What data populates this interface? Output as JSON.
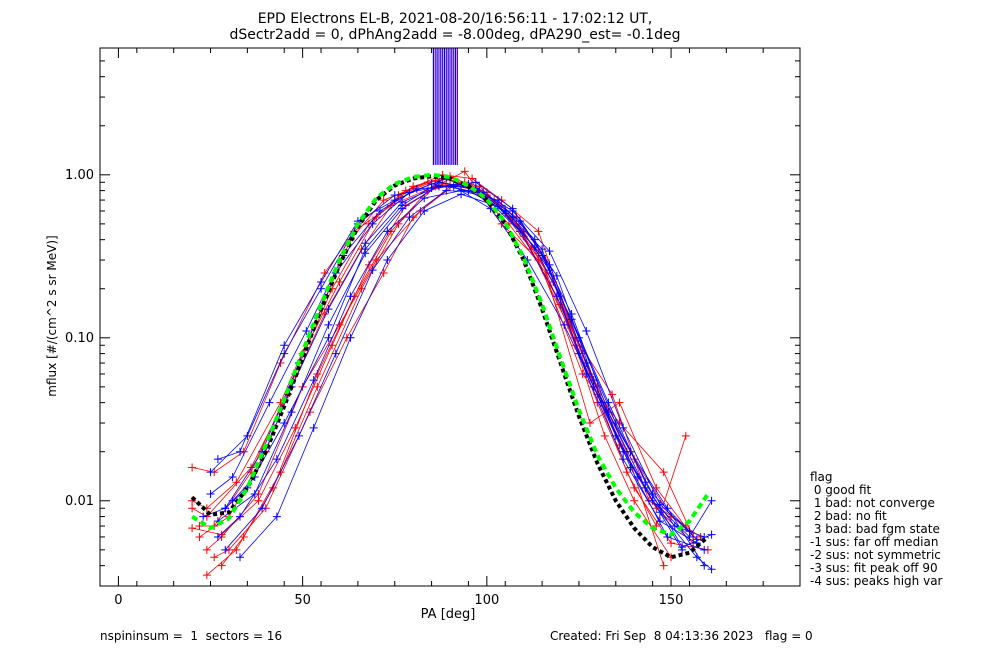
{
  "chart_data": {
    "type": "line",
    "title_line1": "EPD Electrons EL-B, 2021-08-20/16:56:11 - 17:02:12 UT,",
    "title_line2": "dSectr2add = 0, dPhAng2add = -8.00deg, dPA290_est=  -0.1deg",
    "xlabel": "PA [deg]",
    "ylabel": "mflux [#/(cm^2 s sr MeV)]",
    "xlim": [
      -5,
      185
    ],
    "ylim": [
      0.003,
      6.0
    ],
    "y_scale": "log",
    "x_ticks": [
      {
        "v": 0,
        "label": "0"
      },
      {
        "v": 50,
        "label": "50"
      },
      {
        "v": 100,
        "label": "100"
      },
      {
        "v": 150,
        "label": "150"
      }
    ],
    "y_ticks": [
      {
        "v": 0.01,
        "label": "0.01"
      },
      {
        "v": 0.1,
        "label": "0.10"
      },
      {
        "v": 1.0,
        "label": "1.00"
      }
    ],
    "colors": {
      "red": "#ff0000",
      "blue": "#0000ff",
      "fit_black": "#000000",
      "fit_green": "#00ff00",
      "axis": "#000000"
    },
    "series": [
      {
        "color": "red",
        "pa": [
          20,
          24,
          32,
          44,
          55,
          63,
          72,
          84,
          90
        ],
        "flux": [
          0.01,
          0.009,
          0.013,
          0.04,
          0.15,
          0.4,
          0.7,
          0.9,
          0.95
        ]
      },
      {
        "color": "red",
        "pa": [
          22,
          26,
          36,
          48,
          58,
          68,
          78,
          88,
          96,
          104,
          114,
          124,
          134,
          144,
          154
        ],
        "flux": [
          0.007,
          0.007,
          0.015,
          0.06,
          0.2,
          0.5,
          0.8,
          1.0,
          0.95,
          0.7,
          0.45,
          0.1,
          0.045,
          0.01,
          0.007
        ]
      },
      {
        "color": "red",
        "pa": [
          20,
          26,
          34,
          44,
          56,
          64,
          74,
          86,
          94,
          104,
          114,
          126,
          136,
          148,
          156
        ],
        "flux": [
          0.016,
          0.015,
          0.02,
          0.07,
          0.25,
          0.45,
          0.65,
          0.85,
          1.05,
          0.5,
          0.3,
          0.06,
          0.03,
          0.015,
          0.006
        ]
      },
      {
        "color": "red",
        "pa": [
          24,
          28,
          38,
          50,
          60,
          70,
          82,
          92,
          102,
          112,
          122,
          130,
          140,
          150,
          160
        ],
        "flux": [
          0.005,
          0.006,
          0.011,
          0.05,
          0.12,
          0.3,
          0.6,
          0.9,
          0.7,
          0.35,
          0.12,
          0.04,
          0.012,
          0.0055,
          0.005
        ]
      },
      {
        "color": "red",
        "pa": [
          26,
          30,
          40,
          52,
          62,
          72,
          80,
          90,
          100,
          110,
          120,
          130,
          138,
          146,
          154
        ],
        "flux": [
          0.0045,
          0.005,
          0.009,
          0.035,
          0.1,
          0.25,
          0.55,
          0.85,
          0.75,
          0.45,
          0.18,
          0.045,
          0.015,
          0.007,
          0.025
        ]
      },
      {
        "color": "red",
        "pa": [
          20,
          24,
          36,
          46,
          56,
          66,
          76,
          86,
          96,
          106,
          116,
          128,
          136,
          146,
          156
        ],
        "flux": [
          0.009,
          0.008,
          0.016,
          0.045,
          0.14,
          0.35,
          0.75,
          0.92,
          0.82,
          0.5,
          0.25,
          0.03,
          0.04,
          0.012,
          0.006
        ]
      },
      {
        "color": "red",
        "pa": [
          28,
          34,
          42,
          54,
          64,
          74,
          84,
          94,
          104,
          114,
          124,
          132,
          140,
          150
        ],
        "flux": [
          0.004,
          0.006,
          0.012,
          0.06,
          0.18,
          0.45,
          0.8,
          0.9,
          0.65,
          0.33,
          0.09,
          0.025,
          0.01,
          0.0045
        ]
      },
      {
        "color": "red",
        "pa": [
          22,
          30,
          40,
          50,
          60,
          70,
          80,
          90,
          100,
          110,
          120,
          130,
          140,
          150,
          158
        ],
        "flux": [
          0.006,
          0.008,
          0.02,
          0.08,
          0.22,
          0.55,
          0.85,
          0.98,
          0.78,
          0.42,
          0.16,
          0.05,
          0.018,
          0.008,
          0.006
        ]
      },
      {
        "color": "red",
        "pa": [
          24,
          32,
          44,
          54,
          66,
          76,
          88,
          98,
          108,
          118,
          128,
          138,
          148
        ],
        "flux": [
          0.0035,
          0.005,
          0.015,
          0.05,
          0.2,
          0.5,
          0.95,
          0.85,
          0.5,
          0.22,
          0.06,
          0.02,
          0.004
        ]
      },
      {
        "color": "red",
        "pa": [
          20,
          28,
          38,
          48,
          58,
          68,
          78,
          88,
          98,
          108,
          116,
          126,
          136,
          146,
          156
        ],
        "flux": [
          0.0068,
          0.0062,
          0.01,
          0.028,
          0.09,
          0.28,
          0.65,
          0.88,
          0.8,
          0.55,
          0.3,
          0.08,
          0.022,
          0.009,
          0.0055
        ]
      },
      {
        "color": "blue",
        "pa": [
          27,
          33,
          45,
          55,
          65,
          75,
          85,
          95,
          105,
          115,
          125,
          135,
          145,
          155,
          161
        ],
        "flux": [
          0.018,
          0.02,
          0.09,
          0.22,
          0.52,
          0.7,
          0.88,
          0.8,
          0.6,
          0.35,
          0.08,
          0.025,
          0.01,
          0.006,
          0.01
        ]
      },
      {
        "color": "blue",
        "pa": [
          25,
          31,
          41,
          51,
          61,
          71,
          81,
          91,
          101,
          111,
          121,
          131,
          141,
          151,
          159
        ],
        "flux": [
          0.011,
          0.014,
          0.04,
          0.11,
          0.32,
          0.6,
          0.82,
          0.85,
          0.62,
          0.3,
          0.12,
          0.04,
          0.014,
          0.007,
          0.006
        ]
      },
      {
        "color": "blue",
        "pa": [
          29,
          35,
          45,
          57,
          67,
          77,
          87,
          97,
          107,
          117,
          127,
          137,
          147,
          157
        ],
        "flux": [
          0.009,
          0.012,
          0.03,
          0.1,
          0.35,
          0.65,
          0.9,
          0.82,
          0.55,
          0.26,
          0.06,
          0.018,
          0.0075,
          0.0055
        ]
      },
      {
        "color": "blue",
        "pa": [
          23,
          29,
          39,
          49,
          59,
          69,
          79,
          89,
          99,
          109,
          119,
          129,
          139,
          149,
          159
        ],
        "flux": [
          0.008,
          0.009,
          0.02,
          0.07,
          0.25,
          0.5,
          0.78,
          0.95,
          0.75,
          0.45,
          0.18,
          0.05,
          0.02,
          0.009,
          0.004
        ]
      },
      {
        "color": "blue",
        "pa": [
          27,
          33,
          43,
          53,
          63,
          73,
          83,
          93,
          103,
          113,
          123,
          133,
          143,
          153
        ],
        "flux": [
          0.006,
          0.008,
          0.018,
          0.055,
          0.18,
          0.45,
          0.72,
          0.8,
          0.7,
          0.4,
          0.14,
          0.035,
          0.012,
          0.005
        ]
      },
      {
        "color": "blue",
        "pa": [
          31,
          37,
          47,
          57,
          67,
          77,
          87,
          97,
          107,
          117,
          127,
          137,
          147,
          157,
          161
        ],
        "flux": [
          0.01,
          0.014,
          0.05,
          0.15,
          0.38,
          0.68,
          0.85,
          0.9,
          0.62,
          0.28,
          0.07,
          0.02,
          0.0085,
          0.0045,
          0.0038
        ]
      },
      {
        "color": "blue",
        "pa": [
          25,
          35,
          45,
          55,
          65,
          75,
          85,
          95,
          105,
          115,
          125,
          135,
          145,
          155
        ],
        "flux": [
          0.015,
          0.025,
          0.08,
          0.2,
          0.5,
          0.75,
          0.83,
          0.88,
          0.58,
          0.32,
          0.1,
          0.03,
          0.011,
          0.0065
        ]
      },
      {
        "color": "blue",
        "pa": [
          29,
          39,
          49,
          59,
          69,
          79,
          89,
          99,
          109,
          119,
          129,
          139,
          149,
          159
        ],
        "flux": [
          0.005,
          0.009,
          0.025,
          0.08,
          0.26,
          0.55,
          0.8,
          0.78,
          0.52,
          0.24,
          0.055,
          0.016,
          0.006,
          0.005
        ]
      },
      {
        "color": "blue",
        "pa": [
          27,
          37,
          47,
          57,
          67,
          77,
          87,
          97,
          107,
          117,
          127,
          137,
          147,
          157
        ],
        "flux": [
          0.0075,
          0.011,
          0.035,
          0.12,
          0.33,
          0.62,
          0.86,
          0.83,
          0.6,
          0.34,
          0.11,
          0.028,
          0.0095,
          0.0058
        ]
      },
      {
        "color": "blue",
        "pa": [
          33,
          43,
          53,
          63,
          73,
          83,
          93,
          103,
          113,
          123,
          133,
          143,
          153,
          161
        ],
        "flux": [
          0.0045,
          0.008,
          0.028,
          0.1,
          0.3,
          0.6,
          0.76,
          0.64,
          0.36,
          0.13,
          0.04,
          0.013,
          0.0052,
          0.0062
        ]
      }
    ],
    "fit_black": {
      "pa": [
        20,
        25,
        30,
        35,
        40,
        45,
        50,
        55,
        60,
        65,
        70,
        75,
        80,
        85,
        90,
        95,
        100,
        105,
        110,
        115,
        120,
        125,
        130,
        135,
        140,
        145,
        150,
        155,
        160
      ],
      "flux": [
        0.0105,
        0.0082,
        0.0085,
        0.012,
        0.02,
        0.038,
        0.075,
        0.15,
        0.28,
        0.48,
        0.7,
        0.86,
        0.95,
        0.98,
        0.95,
        0.85,
        0.7,
        0.5,
        0.3,
        0.15,
        0.07,
        0.033,
        0.017,
        0.01,
        0.0068,
        0.0052,
        0.0045,
        0.0048,
        0.006
      ]
    },
    "fit_green": {
      "pa": [
        20,
        25,
        30,
        35,
        40,
        45,
        50,
        55,
        60,
        65,
        70,
        75,
        80,
        85,
        90,
        95,
        100,
        105,
        110,
        115,
        120,
        125,
        130,
        135,
        140,
        145,
        150,
        155,
        160
      ],
      "flux": [
        0.008,
        0.0068,
        0.0078,
        0.012,
        0.022,
        0.042,
        0.082,
        0.16,
        0.3,
        0.5,
        0.72,
        0.88,
        0.97,
        1.0,
        0.97,
        0.86,
        0.71,
        0.51,
        0.31,
        0.16,
        0.075,
        0.036,
        0.019,
        0.012,
        0.0085,
        0.0068,
        0.0062,
        0.0075,
        0.011
      ]
    },
    "vertical_bars": {
      "pa_start": 85.5,
      "pa_end": 92.0,
      "count": 14
    }
  },
  "legend": {
    "title": "flag",
    "items": [
      " 0 good fit",
      " 1 bad: not converge",
      " 2 bad: no fit",
      " 3 bad: bad fgm state",
      "-1 sus: far off median",
      "-2 sus: not symmetric",
      "-3 sus: fit peak off 90",
      "-4 sus: peaks high var"
    ]
  },
  "footer": {
    "left": "nspininsum =  1  sectors = 16",
    "right": "Created: Fri Sep  8 04:13:36 2023   flag = 0"
  }
}
